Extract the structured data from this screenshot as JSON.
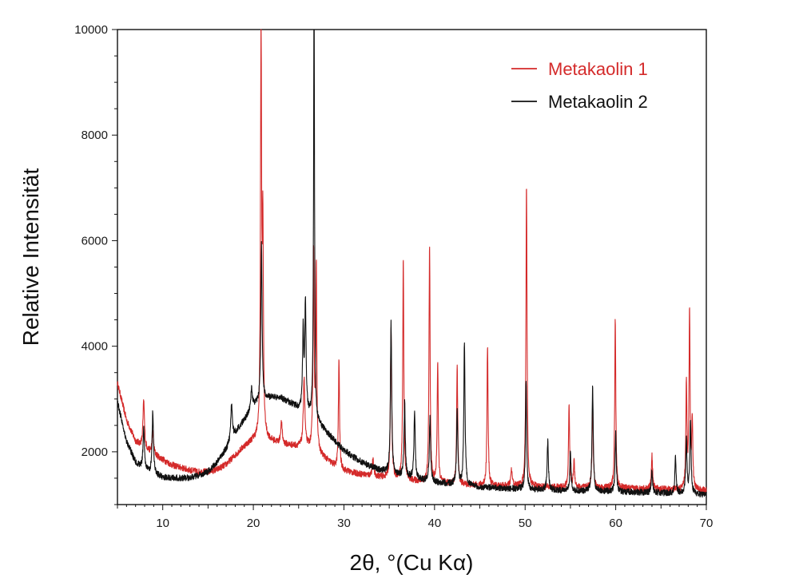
{
  "chart_data": {
    "type": "line",
    "xlabel": "2θ, °(Cu Kα)",
    "ylabel": "Relative Intensität",
    "xlim": [
      5,
      70
    ],
    "ylim": [
      1000,
      10000
    ],
    "x_ticks": [
      10,
      20,
      30,
      40,
      50,
      60,
      70
    ],
    "y_ticks": [
      2000,
      4000,
      6000,
      8000,
      10000
    ],
    "grid": false,
    "legend_position": "top-right",
    "series": [
      {
        "name": "Metakaolin 1",
        "color": "#d42a2a",
        "background": [
          [
            5,
            3300
          ],
          [
            6,
            2600
          ],
          [
            7,
            2200
          ],
          [
            8,
            2050
          ],
          [
            9,
            1950
          ],
          [
            10,
            1850
          ],
          [
            11,
            1750
          ],
          [
            12,
            1700
          ],
          [
            13,
            1650
          ],
          [
            14,
            1620
          ],
          [
            15,
            1620
          ],
          [
            16,
            1660
          ],
          [
            17,
            1760
          ],
          [
            18,
            1930
          ],
          [
            19,
            2100
          ],
          [
            20,
            2220
          ],
          [
            21,
            2260
          ],
          [
            22,
            2200
          ],
          [
            23,
            2150
          ],
          [
            24,
            2120
          ],
          [
            25,
            2100
          ],
          [
            26,
            2080
          ],
          [
            27,
            2000
          ],
          [
            28,
            1860
          ],
          [
            29,
            1720
          ],
          [
            30,
            1640
          ],
          [
            31,
            1600
          ],
          [
            32,
            1570
          ],
          [
            33,
            1540
          ],
          [
            34,
            1520
          ],
          [
            35,
            1500
          ],
          [
            36,
            1480
          ],
          [
            37,
            1460
          ],
          [
            38,
            1440
          ],
          [
            40,
            1410
          ],
          [
            45,
            1360
          ],
          [
            50,
            1340
          ],
          [
            55,
            1320
          ],
          [
            60,
            1310
          ],
          [
            65,
            1290
          ],
          [
            70,
            1260
          ]
        ],
        "peaks": [
          [
            7.9,
            900,
            0.1
          ],
          [
            8.9,
            400,
            0.1
          ],
          [
            20.85,
            7800,
            0.07
          ],
          [
            21.05,
            3800,
            0.07
          ],
          [
            23.1,
            400,
            0.1
          ],
          [
            25.6,
            1300,
            0.1
          ],
          [
            26.65,
            3800,
            0.07
          ],
          [
            26.95,
            3500,
            0.06
          ],
          [
            29.45,
            2100,
            0.07
          ],
          [
            33.2,
            300,
            0.1
          ],
          [
            35.2,
            2800,
            0.08
          ],
          [
            36.55,
            4200,
            0.07
          ],
          [
            39.45,
            4500,
            0.07
          ],
          [
            40.35,
            2300,
            0.07
          ],
          [
            42.5,
            2300,
            0.07
          ],
          [
            45.85,
            2700,
            0.07
          ],
          [
            48.5,
            300,
            0.1
          ],
          [
            50.15,
            5800,
            0.07
          ],
          [
            54.85,
            1600,
            0.07
          ],
          [
            55.4,
            500,
            0.08
          ],
          [
            57.45,
            1500,
            0.08
          ],
          [
            59.95,
            3200,
            0.07
          ],
          [
            64.0,
            650,
            0.08
          ],
          [
            67.8,
            2000,
            0.07
          ],
          [
            68.15,
            3400,
            0.07
          ],
          [
            68.45,
            1300,
            0.07
          ]
        ]
      },
      {
        "name": "Metakaolin 2",
        "color": "#111111",
        "background": [
          [
            5,
            2950
          ],
          [
            6,
            2200
          ],
          [
            7,
            1800
          ],
          [
            8,
            1650
          ],
          [
            9,
            1560
          ],
          [
            10,
            1520
          ],
          [
            11,
            1510
          ],
          [
            12,
            1500
          ],
          [
            13,
            1510
          ],
          [
            14,
            1550
          ],
          [
            15,
            1620
          ],
          [
            16,
            1800
          ],
          [
            17,
            2050
          ],
          [
            18,
            2350
          ],
          [
            19,
            2600
          ],
          [
            20,
            2850
          ],
          [
            21,
            2980
          ],
          [
            22,
            3030
          ],
          [
            23,
            3020
          ],
          [
            24,
            2930
          ],
          [
            25,
            2820
          ],
          [
            26,
            2700
          ],
          [
            27,
            2550
          ],
          [
            28,
            2380
          ],
          [
            29,
            2200
          ],
          [
            30,
            2030
          ],
          [
            31,
            1900
          ],
          [
            32,
            1800
          ],
          [
            33,
            1720
          ],
          [
            34,
            1650
          ],
          [
            35,
            1600
          ],
          [
            36,
            1550
          ],
          [
            38,
            1480
          ],
          [
            40,
            1420
          ],
          [
            45,
            1330
          ],
          [
            50,
            1290
          ],
          [
            55,
            1260
          ],
          [
            60,
            1240
          ],
          [
            65,
            1220
          ],
          [
            70,
            1180
          ]
        ],
        "peaks": [
          [
            7.9,
            800,
            0.09
          ],
          [
            8.9,
            1200,
            0.09
          ],
          [
            17.6,
            700,
            0.1
          ],
          [
            19.8,
            400,
            0.1
          ],
          [
            20.9,
            3000,
            0.08
          ],
          [
            25.5,
            1500,
            0.08
          ],
          [
            25.75,
            2100,
            0.08
          ],
          [
            26.7,
            8500,
            0.06
          ],
          [
            35.2,
            2900,
            0.08
          ],
          [
            36.7,
            1400,
            0.08
          ],
          [
            37.8,
            1300,
            0.08
          ],
          [
            39.5,
            1200,
            0.08
          ],
          [
            42.5,
            1400,
            0.08
          ],
          [
            43.3,
            2700,
            0.08
          ],
          [
            50.1,
            2100,
            0.07
          ],
          [
            52.5,
            950,
            0.08
          ],
          [
            55.0,
            700,
            0.08
          ],
          [
            57.45,
            2000,
            0.08
          ],
          [
            60.0,
            1100,
            0.08
          ],
          [
            64.0,
            400,
            0.08
          ],
          [
            66.6,
            700,
            0.08
          ],
          [
            67.8,
            1000,
            0.08
          ],
          [
            68.25,
            1400,
            0.08
          ]
        ]
      }
    ]
  }
}
